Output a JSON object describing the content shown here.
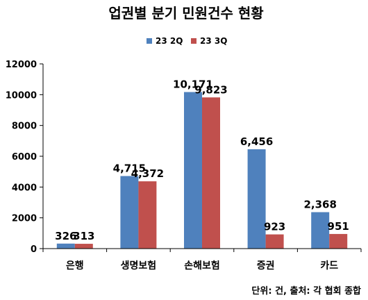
{
  "chart_data": {
    "type": "bar",
    "title": "업권별 분기 민원건수 현황",
    "categories": [
      "은행",
      "생명보험",
      "손해보험",
      "증권",
      "카드"
    ],
    "series": [
      {
        "name": "23 2Q",
        "values": [
          326,
          4715,
          10171,
          6456,
          2368
        ],
        "labels": [
          "326",
          "4,715",
          "10,171",
          "6,456",
          "2,368"
        ],
        "color": "#4F81BD"
      },
      {
        "name": "23 3Q",
        "values": [
          313,
          4372,
          9823,
          923,
          951
        ],
        "labels": [
          "313",
          "4,372",
          "9,823",
          "923",
          "951"
        ],
        "color": "#C0504D"
      }
    ],
    "yticks": [
      "0",
      "2000",
      "4000",
      "6000",
      "8000",
      "10000",
      "12000"
    ],
    "ylim": [
      0,
      12000
    ],
    "grid": false,
    "legend_position": "top",
    "source_note": "단위: 건, 출처: 각 협회 종합"
  }
}
